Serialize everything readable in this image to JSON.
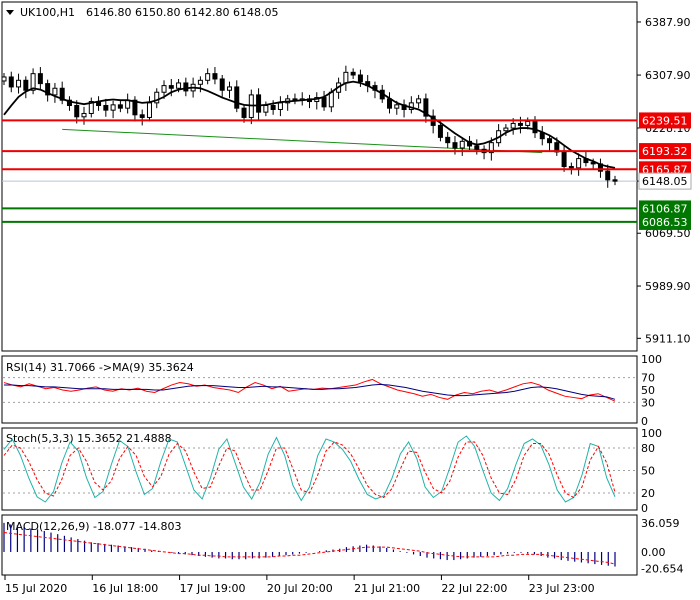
{
  "header": {
    "symbol": "UK100,H1",
    "ohlc": "6146.80 6150.80 6142.80 6148.05"
  },
  "colors": {
    "support": "#007700",
    "resistance": "#ee0000",
    "up_candle": "#000000",
    "down_candle": "#000000",
    "ma_line": "#000000",
    "rsi_main": "#ff0000",
    "rsi_ma": "#000080",
    "stoch_main": "#20b2aa",
    "stoch_signal": "#ff0000",
    "macd_hist": "#000080",
    "macd_signal": "#ff0000",
    "trendline": "#1a8f1a"
  },
  "chart_data": [
    {
      "type": "candlestick",
      "panel": "price",
      "title": "UK100,H1",
      "y_ticks": [
        5911.1,
        5989.9,
        6069.5,
        6148.05,
        6228.1,
        6307.9,
        6387.9
      ],
      "y_tick_labels": [
        "5911.10",
        "5989.90",
        "6069.50",
        "6148.05",
        "6228.10",
        "6307.90",
        "6387.90"
      ],
      "ylim": [
        5895,
        6415
      ],
      "x_labels": [
        "15 Jul 2020",
        "16 Jul 18:00",
        "17 Jul 19:00",
        "20 Jul 20:00",
        "21 Jul 21:00",
        "22 Jul 22:00",
        "23 Jul 23:00"
      ],
      "current_price": 6148.05,
      "levels": [
        {
          "value": 6239.51,
          "label": "6239.51",
          "kind": "resistance"
        },
        {
          "value": 6193.32,
          "label": "6193.32",
          "kind": "resistance"
        },
        {
          "value": 6165.87,
          "label": "6165.87",
          "kind": "resistance"
        },
        {
          "value": 6106.87,
          "label": "6106.87",
          "kind": "support"
        },
        {
          "value": 6086.53,
          "label": "6086.53",
          "kind": "support"
        }
      ],
      "trendline": {
        "from": [
          8,
          6226
        ],
        "to": [
          74,
          6191
        ]
      },
      "close_series": [
        6305,
        6290,
        6300,
        6285,
        6310,
        6295,
        6278,
        6288,
        6270,
        6262,
        6245,
        6250,
        6268,
        6262,
        6255,
        6263,
        6258,
        6270,
        6248,
        6244,
        6266,
        6282,
        6292,
        6288,
        6296,
        6284,
        6294,
        6300,
        6310,
        6302,
        6285,
        6290,
        6258,
        6244,
        6278,
        6252,
        6262,
        6256,
        6266,
        6272,
        6270,
        6272,
        6268,
        6274,
        6260,
        6282,
        6296,
        6312,
        6308,
        6298,
        6292,
        6285,
        6272,
        6258,
        6263,
        6256,
        6266,
        6272,
        6246,
        6232,
        6214,
        6206,
        6198,
        6208,
        6201,
        6196,
        6191,
        6206,
        6224,
        6228,
        6235,
        6232,
        6238,
        6221,
        6212,
        6206,
        6192,
        6170,
        6168,
        6182,
        6176,
        6174,
        6163,
        6150,
        6148
      ],
      "ma_series": [
        6248,
        6262,
        6275,
        6283,
        6288,
        6286,
        6281,
        6276,
        6272,
        6268,
        6266,
        6264,
        6266,
        6268,
        6270,
        6271,
        6270,
        6270,
        6268,
        6266,
        6267,
        6270,
        6275,
        6282,
        6286,
        6288,
        6289,
        6288,
        6284,
        6279,
        6274,
        6270,
        6266,
        6263,
        6262,
        6262,
        6263,
        6265,
        6267,
        6268,
        6269,
        6270,
        6271,
        6272,
        6275,
        6282,
        6290,
        6296,
        6298,
        6296,
        6292,
        6286,
        6280,
        6273,
        6266,
        6262,
        6259,
        6256,
        6250,
        6243,
        6236,
        6228,
        6220,
        6213,
        6206,
        6203,
        6205,
        6209,
        6214,
        6221,
        6226,
        6228,
        6228,
        6226,
        6222,
        6217,
        6210,
        6202,
        6194,
        6188,
        6182,
        6178,
        6173,
        6170,
        6168
      ]
    },
    {
      "type": "line",
      "panel": "rsi",
      "title": "RSI(14) 31.7066  ->MA(9) 35.3624",
      "y_tick_labels": [
        "100",
        "70",
        "50",
        "30",
        "0"
      ],
      "ylim": [
        0,
        100
      ],
      "levels": [
        70,
        30
      ],
      "series": [
        {
          "values": [
            62,
            58,
            55,
            60,
            56,
            52,
            54,
            50,
            48,
            50,
            53,
            55,
            50,
            48,
            52,
            50,
            53,
            48,
            46,
            52,
            58,
            62,
            60,
            56,
            58,
            54,
            52,
            50,
            46,
            55,
            62,
            58,
            52,
            56,
            48,
            50,
            52,
            51,
            53,
            52,
            54,
            56,
            58,
            63,
            67,
            60,
            55,
            50,
            47,
            44,
            40,
            43,
            38,
            35,
            42,
            46,
            44,
            48,
            50,
            46,
            50,
            55,
            60,
            62,
            58,
            50,
            45,
            40,
            38,
            36,
            42,
            44,
            38,
            32
          ]
        },
        {
          "values": [
            58,
            58,
            57,
            57,
            56,
            55,
            55,
            54,
            53,
            52,
            52,
            52,
            52,
            51,
            51,
            51,
            51,
            51,
            50,
            50,
            52,
            54,
            56,
            57,
            57,
            57,
            56,
            55,
            54,
            54,
            55,
            56,
            55,
            55,
            54,
            53,
            52,
            51,
            51,
            52,
            52,
            53,
            54,
            56,
            58,
            59,
            58,
            56,
            54,
            51,
            48,
            46,
            44,
            42,
            41,
            41,
            42,
            43,
            44,
            45,
            46,
            48,
            51,
            54,
            55,
            54,
            52,
            49,
            46,
            43,
            41,
            40,
            39,
            35
          ]
        }
      ]
    },
    {
      "type": "line",
      "panel": "stochastic",
      "title": "Stoch(5,3,3) 15.3652 21.4888",
      "y_tick_labels": [
        "100",
        "80",
        "50",
        "20",
        "0"
      ],
      "ylim": [
        0,
        100
      ],
      "levels": [
        80,
        50,
        20
      ],
      "series": [
        {
          "values": [
            78,
            92,
            70,
            40,
            15,
            8,
            22,
            60,
            88,
            76,
            40,
            14,
            22,
            58,
            90,
            82,
            48,
            18,
            26,
            62,
            92,
            88,
            56,
            24,
            12,
            40,
            78,
            92,
            60,
            28,
            12,
            34,
            72,
            94,
            70,
            30,
            10,
            28,
            70,
            92,
            88,
            78,
            62,
            38,
            18,
            12,
            16,
            40,
            72,
            88,
            66,
            28,
            14,
            22,
            54,
            88,
            96,
            82,
            50,
            20,
            10,
            26,
            58,
            86,
            92,
            84,
            58,
            24,
            8,
            14,
            44,
            86,
            82,
            40,
            15
          ]
        },
        {
          "values": [
            70,
            84,
            80,
            62,
            38,
            20,
            16,
            38,
            70,
            80,
            62,
            34,
            24,
            36,
            66,
            82,
            70,
            42,
            28,
            42,
            72,
            86,
            76,
            48,
            26,
            28,
            56,
            80,
            76,
            48,
            24,
            24,
            50,
            80,
            80,
            52,
            24,
            20,
            44,
            76,
            88,
            84,
            72,
            52,
            30,
            18,
            14,
            26,
            52,
            76,
            74,
            48,
            26,
            20,
            36,
            68,
            88,
            88,
            70,
            40,
            20,
            18,
            38,
            70,
            86,
            86,
            72,
            44,
            20,
            14,
            28,
            64,
            82,
            60,
            21
          ]
        }
      ]
    },
    {
      "type": "bar",
      "panel": "macd",
      "title": "MACD(12,26,9) -18.077 -14.803",
      "y_tick_labels": [
        "36.059",
        "0.00",
        "-20.654"
      ],
      "ylim": [
        -26,
        42
      ],
      "histogram": [
        36,
        34,
        33,
        31,
        29,
        28,
        26,
        24,
        22,
        20,
        18,
        16,
        14,
        12,
        11,
        10,
        9,
        8,
        7,
        6,
        5,
        4,
        2,
        1,
        0,
        -1,
        -2,
        -3,
        -4,
        -5,
        -6,
        -7,
        -8,
        -8,
        -9,
        -9,
        -9,
        -8,
        -8,
        -7,
        -6,
        -5,
        -4,
        -3,
        -2,
        -1,
        0,
        1,
        2,
        3,
        4,
        6,
        7,
        8,
        9,
        8,
        7,
        5,
        3,
        1,
        -1,
        -3,
        -5,
        -7,
        -8,
        -9,
        -10,
        -10,
        -9,
        -8,
        -7,
        -6,
        -5,
        -4,
        -3,
        -2,
        -1,
        -1,
        -2,
        -3,
        -5,
        -7,
        -8,
        -10,
        -11,
        -12,
        -13,
        -14,
        -15,
        -16,
        -17,
        -18
      ],
      "signal": [
        24,
        23,
        22,
        21,
        20,
        19,
        18,
        17,
        16,
        15,
        14,
        13,
        12,
        11,
        10,
        9,
        8,
        7,
        6,
        5,
        4,
        3,
        2,
        1,
        0,
        -1,
        -2,
        -2,
        -3,
        -4,
        -4,
        -5,
        -5,
        -6,
        -6,
        -6,
        -6,
        -6,
        -6,
        -6,
        -6,
        -5,
        -5,
        -4,
        -4,
        -3,
        -2,
        -1,
        0,
        1,
        2,
        3,
        4,
        5,
        6,
        6,
        6,
        6,
        5,
        4,
        3,
        2,
        1,
        -1,
        -2,
        -3,
        -4,
        -5,
        -6,
        -6,
        -6,
        -6,
        -6,
        -6,
        -5,
        -4,
        -4,
        -3,
        -3,
        -3,
        -3,
        -4,
        -5,
        -6,
        -7,
        -8,
        -9,
        -10,
        -11,
        -12,
        -13,
        -15
      ]
    }
  ]
}
